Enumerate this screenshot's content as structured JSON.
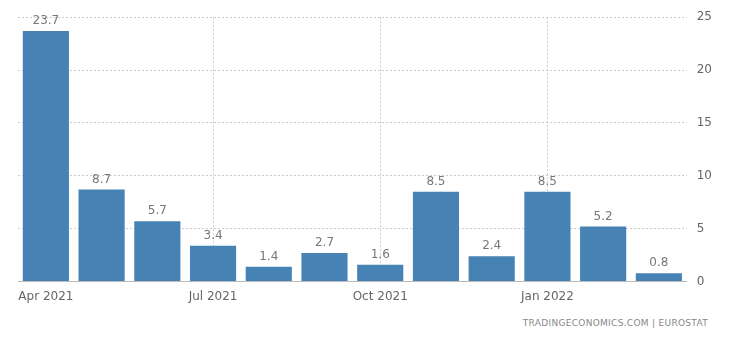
{
  "chart_data": {
    "type": "bar",
    "categories": [
      "Apr 2021",
      null,
      null,
      "Jul 2021",
      null,
      null,
      "Oct 2021",
      null,
      null,
      "Jan 2022",
      null,
      null
    ],
    "values": [
      23.7,
      8.7,
      5.7,
      3.4,
      1.4,
      2.7,
      1.6,
      8.5,
      2.4,
      8.5,
      5.2,
      0.8
    ],
    "color": "#4682b4",
    "ylim": [
      0,
      25
    ],
    "yticks": [
      0,
      5,
      10,
      15,
      20,
      25
    ],
    "grid": true,
    "data_labels": true,
    "source": "TRADINGECONOMICS.COM | EUROSTAT"
  }
}
